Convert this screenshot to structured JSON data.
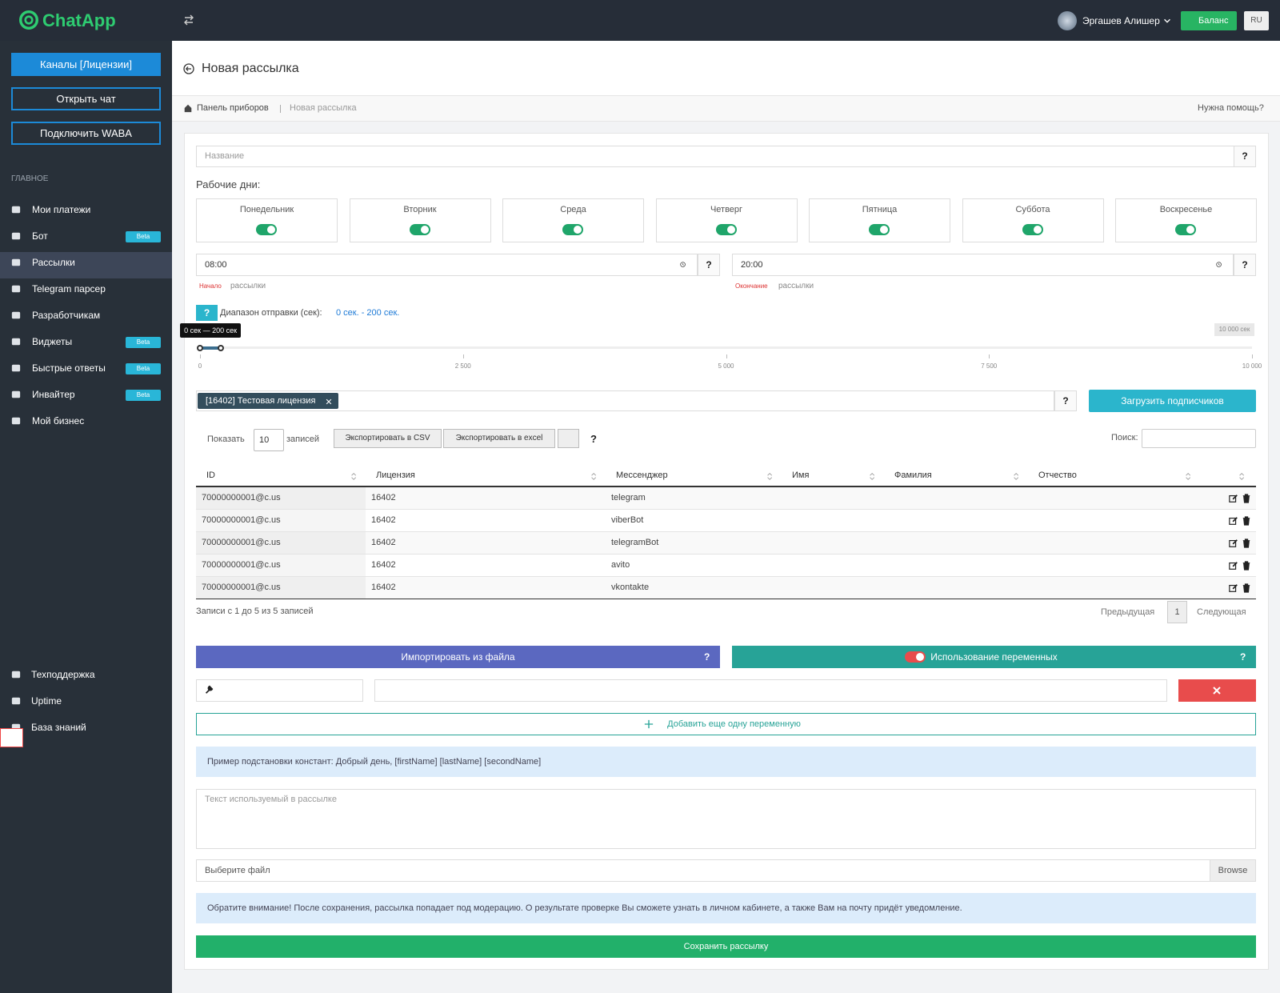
{
  "header": {
    "logo": "ChatApp",
    "user": "Эргашев Алишер",
    "balance": "Баланс",
    "lang": "RU"
  },
  "sidebar": {
    "buttons": [
      "Каналы [Лицензии]",
      "Открыть чат",
      "Подключить WABA"
    ],
    "section": "ГЛАВНОЕ",
    "menu": [
      {
        "label": "Мои платежи"
      },
      {
        "label": "Бот",
        "badge": "Beta"
      },
      {
        "label": "Рассылки"
      },
      {
        "label": "Telegram парсер"
      },
      {
        "label": "Разработчикам"
      },
      {
        "label": "Виджеты",
        "badge": "Beta"
      },
      {
        "label": "Быстрые ответы",
        "badge": "Beta"
      },
      {
        "label": "Инвайтер",
        "badge": "Beta"
      },
      {
        "label": "Мой бизнес"
      }
    ],
    "bottom": [
      "Техподдержка",
      "Uptime",
      "База знаний"
    ]
  },
  "page": {
    "title": "Новая рассылка",
    "breadcrumb": [
      "Панель приборов",
      "Новая рассылка"
    ],
    "help": "Нужна помощь?"
  },
  "form": {
    "help": "?",
    "name_placeholder": "Название",
    "workdays_label": "Рабочие дни:",
    "days": [
      "Понедельник",
      "Вторник",
      "Среда",
      "Четверг",
      "Пятница",
      "Суббота",
      "Воскресенье"
    ],
    "start_time": "08:00",
    "end_time": "20:00",
    "start_label": [
      "Начало",
      "рассылки"
    ],
    "end_label": [
      "Окончание",
      "рассылки"
    ],
    "range_label": "Диапазон отправки (сек):",
    "range_value": "0 сек. - 200 сек."
  },
  "slider": {
    "min": 0,
    "max": 10000,
    "from": 0,
    "to": 200,
    "tooltip": "0 сек — 200 сек",
    "max_label": "10 000 сек",
    "ticks": [
      0,
      {
        "value": 2500,
        "label": "2 500"
      },
      {
        "value": 5000,
        "label": "5 000"
      },
      {
        "value": 7500,
        "label": "7 500"
      },
      {
        "value": 10000,
        "label": "10 000"
      }
    ]
  },
  "license": {
    "tag": "[16402] Тестовая лицензия",
    "upload": "Загрузить подписчиков"
  },
  "table": {
    "show": "Показать",
    "page_size": 10,
    "entries": "записей",
    "export_csv": "Экспортировать в CSV",
    "export_excel": "Экспортировать в excel",
    "search": "Поиск:",
    "columns": [
      "ID",
      "Лицензия",
      "Мессенджер",
      "Имя",
      "Фамилия",
      "Отчество"
    ],
    "rows": [
      [
        "70000000001@c.us",
        16402,
        "telegram"
      ],
      [
        "70000000001@c.us",
        16402,
        "viberBot"
      ],
      [
        "70000000001@c.us",
        16402,
        "telegramBot"
      ],
      [
        "70000000001@c.us",
        16402,
        "avito"
      ],
      [
        "70000000001@c.us",
        16402,
        "vkontakte"
      ]
    ],
    "info": "Записи с 1 до 5 из 5 записей",
    "prev": "Предыдущая",
    "page": 1,
    "next": "Следующая"
  },
  "variables": {
    "import": "Импортировать из файла",
    "use": "Использование переменных",
    "add": "Добавить еще одну переменную",
    "example": "Пример подстановки констант: Добрый день, [firstName] [lastName] [secondName]",
    "text_placeholder": "Текст используемый в рассылке",
    "file": "Выберите файл",
    "browse": "Browse",
    "notice": "Обратите внимание! После сохранения, рассылка попадает под модерацию. О результате проверке Вы сможете узнать в личном кабинете, а также Вам на почту придёт уведомление.",
    "save": "Сохранить рассылку"
  }
}
